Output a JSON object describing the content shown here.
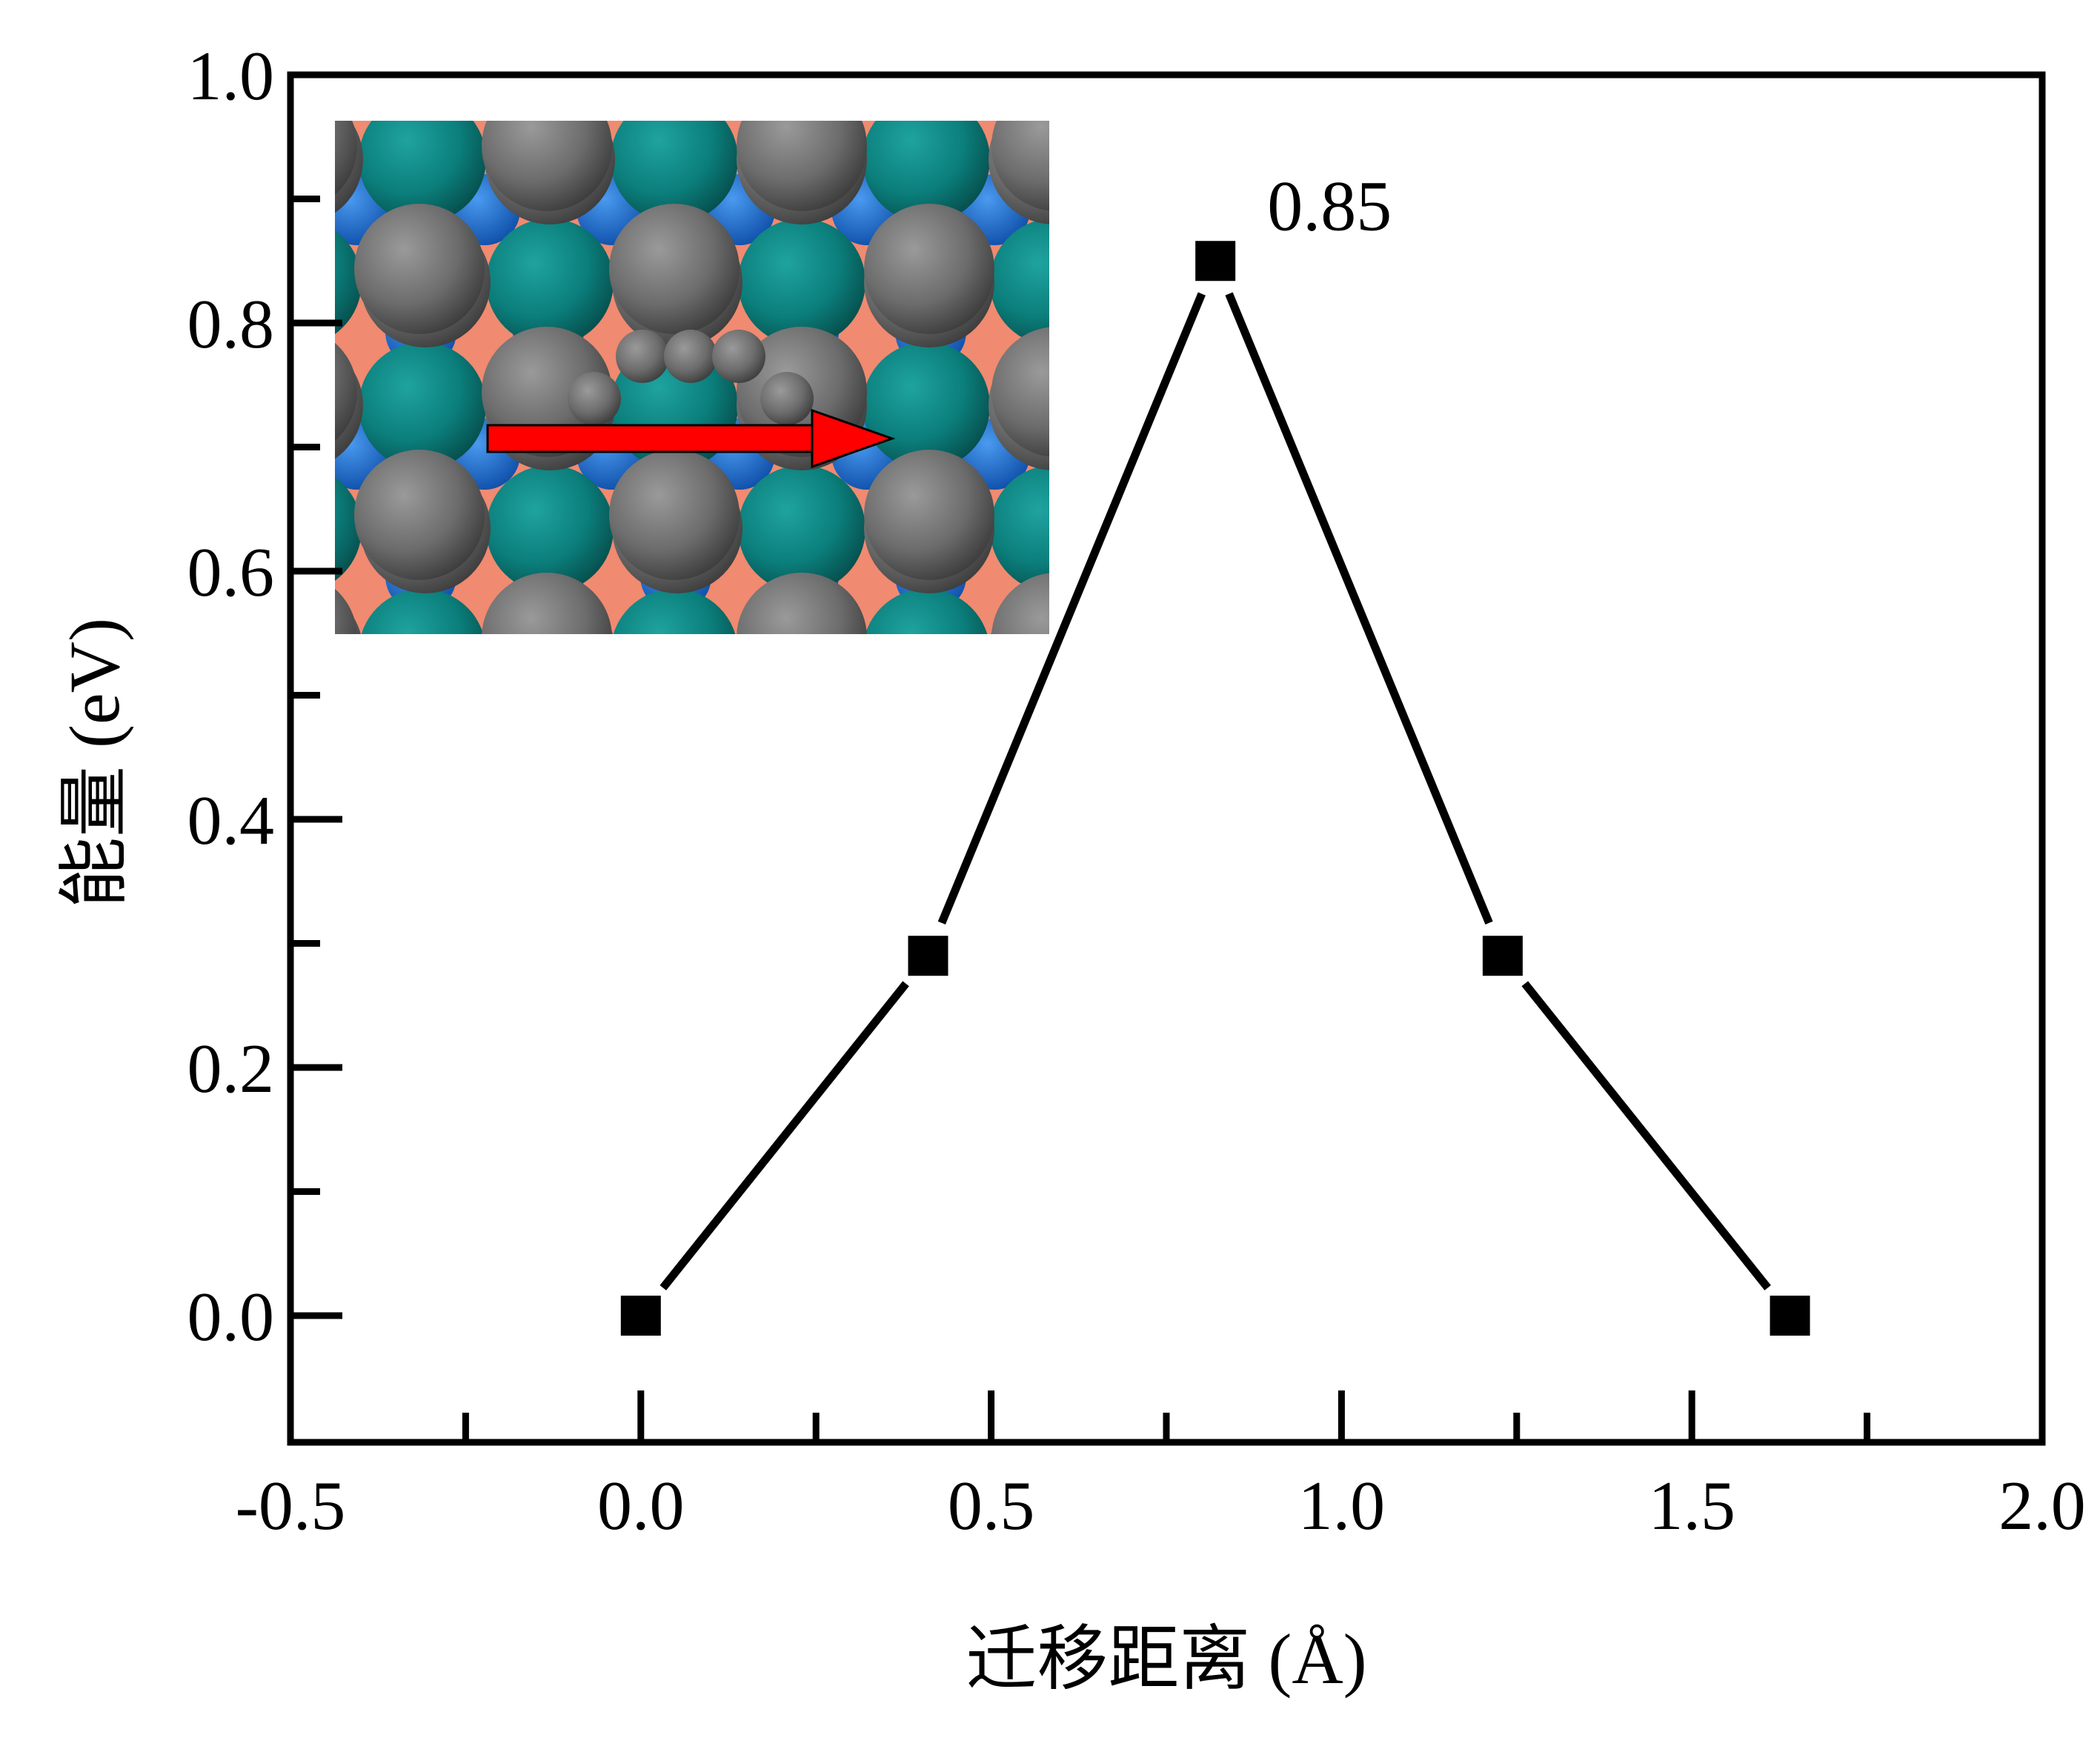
{
  "chart_data": {
    "type": "line",
    "title": "",
    "xlabel": "迁移距离 (Å)",
    "ylabel": "能量 (eV)",
    "xlim": [
      -0.5,
      2.0
    ],
    "ylim": [
      -0.1,
      1.0
    ],
    "x_ticks": [
      "-0.5",
      "0.0",
      "0.5",
      "1.0",
      "1.5",
      "2.0"
    ],
    "y_ticks": [
      "0.0",
      "0.2",
      "0.4",
      "0.6",
      "0.8",
      "1.0"
    ],
    "grid": false,
    "legend": "none",
    "series": [
      {
        "marker": "square",
        "color": "#000000",
        "x": [
          0.0,
          0.41,
          0.82,
          1.23,
          1.64
        ],
        "y": [
          0.0,
          0.29,
          0.85,
          0.29,
          0.0
        ]
      }
    ],
    "annotations": [
      {
        "text": "0.85",
        "x": 0.82,
        "y": 0.85
      }
    ],
    "inset": {
      "content": "atomic-structure-top-view",
      "arrow_color": "#ff0000",
      "colors": {
        "gray_atom": "#707070",
        "teal_atom": "#0a8080",
        "blue_atom": "#1e6fd9",
        "salmon_bg": "#f08a70"
      }
    }
  }
}
